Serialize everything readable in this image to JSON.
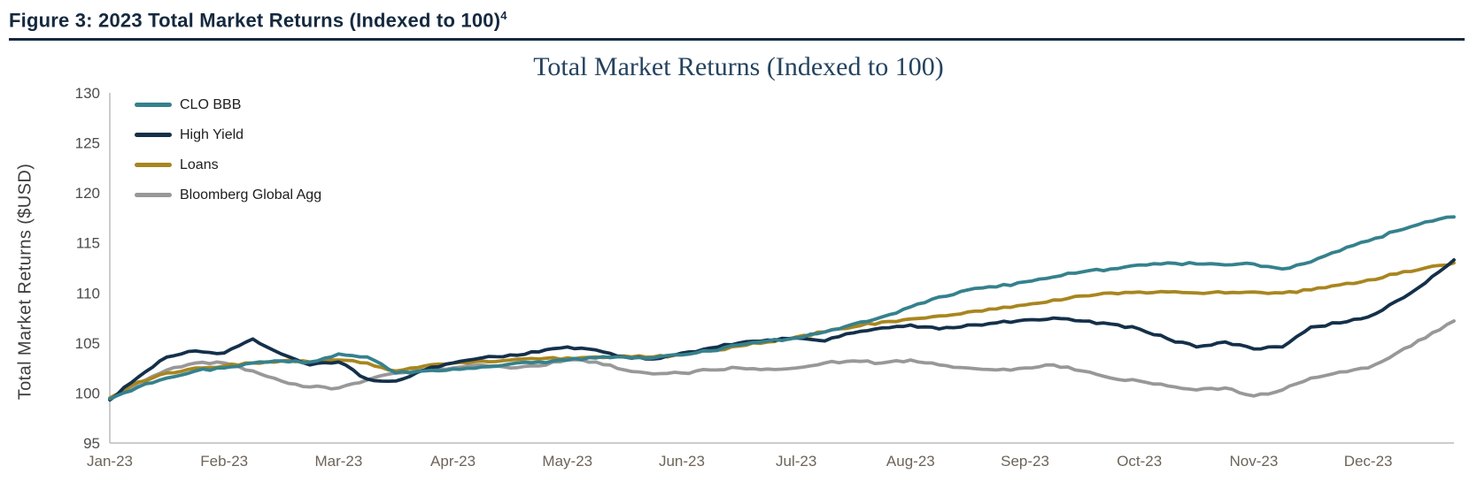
{
  "header": {
    "figure_label": "Figure 3: 2023 Total Market Returns (Indexed to 100)",
    "footnote_marker": "4"
  },
  "chart_data": {
    "type": "line",
    "title": "Total Market Returns (Indexed to 100)",
    "ylabel": "Total Market Returns ($USD)",
    "xlabel": "",
    "ylim": [
      95,
      130
    ],
    "yticks": [
      95,
      100,
      105,
      110,
      115,
      120,
      125,
      130
    ],
    "grid": false,
    "legend_position": "top-left-inside",
    "x_tick_labels": [
      "Jan-23",
      "Feb-23",
      "Mar-23",
      "Apr-23",
      "May-23",
      "Jun-23",
      "Jul-23",
      "Aug-23",
      "Sep-23",
      "Oct-23",
      "Nov-23",
      "Dec-23"
    ],
    "points_per_month": 4,
    "series": [
      {
        "name": "CLO BBB",
        "color": "#35818d",
        "values": [
          99.4,
          100.6,
          101.5,
          102.2,
          102.5,
          103.0,
          103.2,
          103.1,
          103.9,
          103.6,
          102.0,
          102.2,
          102.4,
          102.6,
          102.9,
          103.1,
          103.3,
          103.5,
          103.6,
          103.5,
          103.8,
          104.2,
          104.8,
          105.2,
          105.5,
          106.1,
          106.9,
          107.6,
          108.6,
          109.6,
          110.3,
          110.6,
          111.1,
          111.6,
          112.1,
          112.4,
          112.8,
          113.0,
          112.9,
          112.8,
          112.9,
          112.4,
          113.1,
          114.2,
          115.2,
          116.2,
          117.1,
          117.6
        ]
      },
      {
        "name": "High Yield",
        "color": "#14304a",
        "values": [
          99.3,
          101.6,
          103.6,
          104.2,
          104.0,
          105.4,
          103.9,
          102.8,
          103.1,
          101.4,
          101.2,
          102.3,
          103.0,
          103.5,
          103.8,
          104.1,
          104.6,
          104.3,
          103.6,
          103.4,
          104.0,
          104.5,
          105.0,
          105.3,
          105.5,
          105.2,
          106.0,
          106.5,
          106.8,
          106.4,
          106.8,
          107.0,
          107.3,
          107.5,
          107.2,
          106.9,
          106.4,
          105.4,
          104.6,
          105.1,
          104.4,
          104.6,
          106.6,
          107.0,
          107.6,
          109.2,
          111.0,
          113.3
        ]
      },
      {
        "name": "Loans",
        "color": "#a8861f",
        "values": [
          99.5,
          101.1,
          102.0,
          102.5,
          102.7,
          103.0,
          103.2,
          103.1,
          103.3,
          103.0,
          102.2,
          102.7,
          103.0,
          103.2,
          103.3,
          103.4,
          103.5,
          103.6,
          103.7,
          103.6,
          103.8,
          104.2,
          104.7,
          105.1,
          105.6,
          106.1,
          106.6,
          107.1,
          107.4,
          107.7,
          108.1,
          108.4,
          108.8,
          109.3,
          109.7,
          110.0,
          110.1,
          110.1,
          110.0,
          110.0,
          110.1,
          110.0,
          110.3,
          110.8,
          111.3,
          111.9,
          112.5,
          113.0
        ]
      },
      {
        "name": "Bloomberg Global Agg",
        "color": "#989898",
        "values": [
          99.4,
          101.0,
          102.3,
          103.0,
          103.0,
          102.2,
          101.2,
          100.6,
          100.5,
          101.3,
          102.0,
          102.3,
          102.5,
          102.8,
          102.5,
          102.7,
          103.3,
          103.1,
          102.3,
          101.9,
          102.0,
          102.3,
          102.5,
          102.4,
          102.5,
          103.0,
          103.2,
          103.0,
          103.3,
          102.8,
          102.5,
          102.3,
          102.5,
          102.8,
          102.2,
          101.5,
          101.2,
          100.7,
          100.3,
          100.5,
          99.7,
          100.3,
          101.5,
          102.1,
          102.5,
          104.0,
          105.5,
          107.2
        ]
      }
    ]
  }
}
